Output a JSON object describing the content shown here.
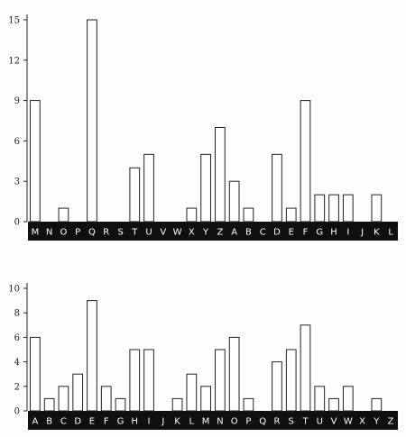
{
  "chart_data": [
    {
      "type": "bar",
      "categories": [
        "M",
        "N",
        "O",
        "P",
        "Q",
        "R",
        "S",
        "T",
        "U",
        "V",
        "W",
        "X",
        "Y",
        "Z",
        "A",
        "B",
        "C",
        "D",
        "E",
        "F",
        "G",
        "H",
        "I",
        "J",
        "K",
        "L"
      ],
      "values": [
        9,
        0,
        1,
        0,
        15,
        0,
        0,
        4,
        5,
        0,
        0,
        1,
        5,
        7,
        3,
        1,
        0,
        5,
        1,
        9,
        2,
        2,
        2,
        0,
        2,
        0
      ],
      "yticks": [
        "0",
        "3",
        "6",
        "9",
        "12",
        "15"
      ],
      "ylim": [
        0,
        15
      ]
    },
    {
      "type": "bar",
      "categories": [
        "A",
        "B",
        "C",
        "D",
        "E",
        "F",
        "G",
        "H",
        "I",
        "J",
        "K",
        "L",
        "M",
        "N",
        "O",
        "P",
        "Q",
        "R",
        "S",
        "T",
        "U",
        "V",
        "W",
        "X",
        "Y",
        "Z"
      ],
      "values": [
        6,
        1,
        2,
        3,
        9,
        2,
        1,
        5,
        5,
        0,
        1,
        3,
        2,
        5,
        6,
        1,
        0,
        4,
        5,
        7,
        2,
        1,
        2,
        0,
        1,
        0
      ],
      "yticks": [
        "0",
        "2",
        "4",
        "6",
        "8",
        "10"
      ],
      "ylim": [
        0,
        10
      ]
    }
  ]
}
